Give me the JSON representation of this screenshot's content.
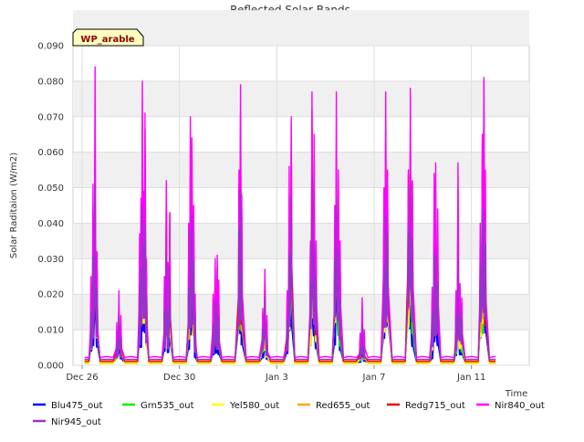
{
  "chart_data": {
    "type": "line",
    "title": "Reflected Solar Bands",
    "xlabel": "Time",
    "ylabel": "Solar Raditaion (W/m2)",
    "site_label": "WP_arable",
    "x_range": [
      "2021-12-26T00:00",
      "2022-01-13T00:00"
    ],
    "x_ticks": [
      {
        "date": "2021-12-26",
        "label": "Dec 26"
      },
      {
        "date": "2021-12-30",
        "label": "Dec 30"
      },
      {
        "date": "2022-01-03",
        "label": "Jan 3"
      },
      {
        "date": "2022-01-07",
        "label": "Jan 7"
      },
      {
        "date": "2022-01-11",
        "label": "Jan 11"
      }
    ],
    "y_ticks": [
      "0.000",
      "0.010",
      "0.020",
      "0.030",
      "0.040",
      "0.050",
      "0.060",
      "0.070",
      "0.080",
      "0.090"
    ],
    "ylim": [
      0,
      0.09
    ],
    "grid": true,
    "legend_position": "bottom",
    "series_ratios": [
      0.385,
      0.64,
      0.66,
      0.79,
      0.87,
      1.0,
      0.62
    ],
    "series_baseline": [
      0.0008,
      0.001,
      0.0005,
      0.0009,
      0.0012,
      0.0022,
      0.0017
    ],
    "daily_peaks": [
      {
        "date": "2021-12-26",
        "peaks": [
          [
            0.15,
            0.025
          ],
          [
            0.35,
            0.051
          ],
          [
            0.55,
            0.084
          ],
          [
            0.75,
            0.032
          ]
        ]
      },
      {
        "date": "2021-12-27",
        "peaks": [
          [
            0.3,
            0.012
          ],
          [
            0.5,
            0.021
          ],
          [
            0.7,
            0.014
          ]
        ]
      },
      {
        "date": "2021-12-28",
        "peaks": [
          [
            0.15,
            0.037
          ],
          [
            0.28,
            0.047
          ],
          [
            0.42,
            0.08
          ],
          [
            0.55,
            0.049
          ],
          [
            0.68,
            0.071
          ],
          [
            0.82,
            0.03
          ]
        ]
      },
      {
        "date": "2021-12-29",
        "peaks": [
          [
            0.2,
            0.025
          ],
          [
            0.38,
            0.052
          ],
          [
            0.55,
            0.029
          ],
          [
            0.72,
            0.043
          ]
        ]
      },
      {
        "date": "2021-12-30",
        "peaks": [
          [
            0.2,
            0.04
          ],
          [
            0.35,
            0.07
          ],
          [
            0.5,
            0.064
          ],
          [
            0.68,
            0.045
          ],
          [
            0.82,
            0.02
          ]
        ]
      },
      {
        "date": "2021-12-31",
        "peaks": [
          [
            0.2,
            0.02
          ],
          [
            0.4,
            0.03
          ],
          [
            0.6,
            0.031
          ],
          [
            0.75,
            0.024
          ]
        ]
      },
      {
        "date": "2022-01-01",
        "peaks": [
          [
            0.35,
            0.055
          ],
          [
            0.5,
            0.079
          ],
          [
            0.62,
            0.048
          ]
        ]
      },
      {
        "date": "2022-01-02",
        "peaks": [
          [
            0.3,
            0.016
          ],
          [
            0.5,
            0.027
          ],
          [
            0.7,
            0.014
          ]
        ]
      },
      {
        "date": "2022-01-03",
        "peaks": [
          [
            0.3,
            0.021
          ],
          [
            0.5,
            0.056
          ],
          [
            0.7,
            0.07
          ]
        ]
      },
      {
        "date": "2022-01-04",
        "peaks": [
          [
            0.2,
            0.035
          ],
          [
            0.35,
            0.077
          ],
          [
            0.55,
            0.065
          ],
          [
            0.75,
            0.035
          ]
        ]
      },
      {
        "date": "2022-01-05",
        "peaks": [
          [
            0.2,
            0.045
          ],
          [
            0.35,
            0.077
          ],
          [
            0.55,
            0.055
          ],
          [
            0.72,
            0.035
          ]
        ]
      },
      {
        "date": "2022-01-06",
        "peaks": [
          [
            0.3,
            0.009
          ],
          [
            0.5,
            0.019
          ],
          [
            0.7,
            0.01
          ]
        ]
      },
      {
        "date": "2022-01-07",
        "peaks": [
          [
            0.25,
            0.05
          ],
          [
            0.42,
            0.077
          ],
          [
            0.6,
            0.055
          ]
        ]
      },
      {
        "date": "2022-01-08",
        "peaks": [
          [
            0.25,
            0.055
          ],
          [
            0.45,
            0.078
          ],
          [
            0.65,
            0.052
          ]
        ]
      },
      {
        "date": "2022-01-09",
        "peaks": [
          [
            0.2,
            0.022
          ],
          [
            0.4,
            0.054
          ],
          [
            0.55,
            0.057
          ],
          [
            0.75,
            0.044
          ]
        ]
      },
      {
        "date": "2022-01-10",
        "peaks": [
          [
            0.15,
            0.021
          ],
          [
            0.35,
            0.057
          ],
          [
            0.55,
            0.023
          ],
          [
            0.72,
            0.019
          ]
        ]
      },
      {
        "date": "2022-01-11",
        "peaks": [
          [
            0.15,
            0.04
          ],
          [
            0.35,
            0.065
          ],
          [
            0.5,
            0.081
          ],
          [
            0.65,
            0.055
          ]
        ]
      }
    ],
    "series": [
      {
        "name": "Blu475_out",
        "color": "#0000ff"
      },
      {
        "name": "Grn535_out",
        "color": "#00ee00"
      },
      {
        "name": "Yel580_out",
        "color": "#ffff00"
      },
      {
        "name": "Red655_out",
        "color": "#ffa500"
      },
      {
        "name": "Redg715_out",
        "color": "#ee0000"
      },
      {
        "name": "Nir840_out",
        "color": "#ff00ff"
      },
      {
        "name": "Nir945_out",
        "color": "#9932cc"
      }
    ]
  }
}
